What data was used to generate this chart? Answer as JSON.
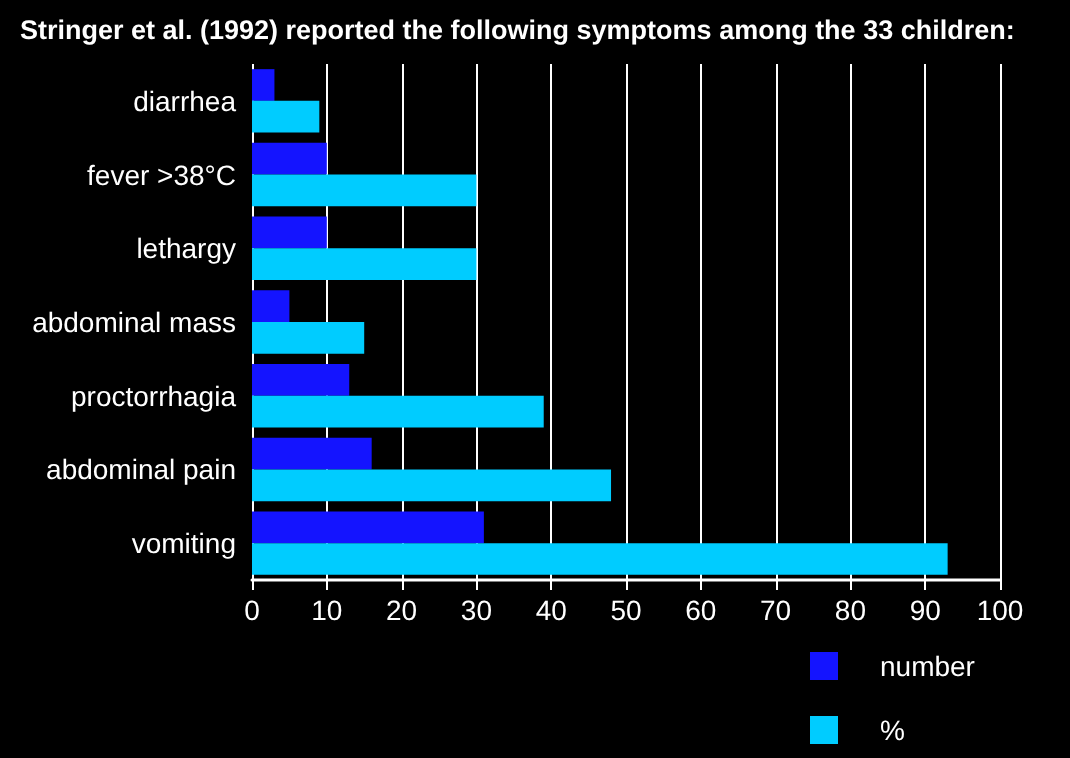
{
  "chart_data": {
    "type": "bar",
    "orientation": "horizontal",
    "title": "Stringer et al. (1992) reported the following symptoms among the 33 children:",
    "categories": [
      "diarrhea",
      "fever >38°C",
      "lethargy",
      "abdominal mass",
      "proctorrhagia",
      "abdominal pain",
      "vomiting"
    ],
    "series": [
      {
        "name": "number",
        "color": "#1414ff",
        "values": [
          3,
          10,
          10,
          5,
          13,
          16,
          31
        ]
      },
      {
        "name": "%",
        "color": "#00ccff",
        "values": [
          9,
          30,
          30,
          15,
          39,
          48,
          93
        ]
      }
    ],
    "xlim": [
      0,
      100
    ],
    "xticks": [
      0,
      10,
      20,
      30,
      40,
      50,
      60,
      70,
      80,
      90,
      100
    ],
    "grid": "x",
    "legend": "bottom right"
  }
}
